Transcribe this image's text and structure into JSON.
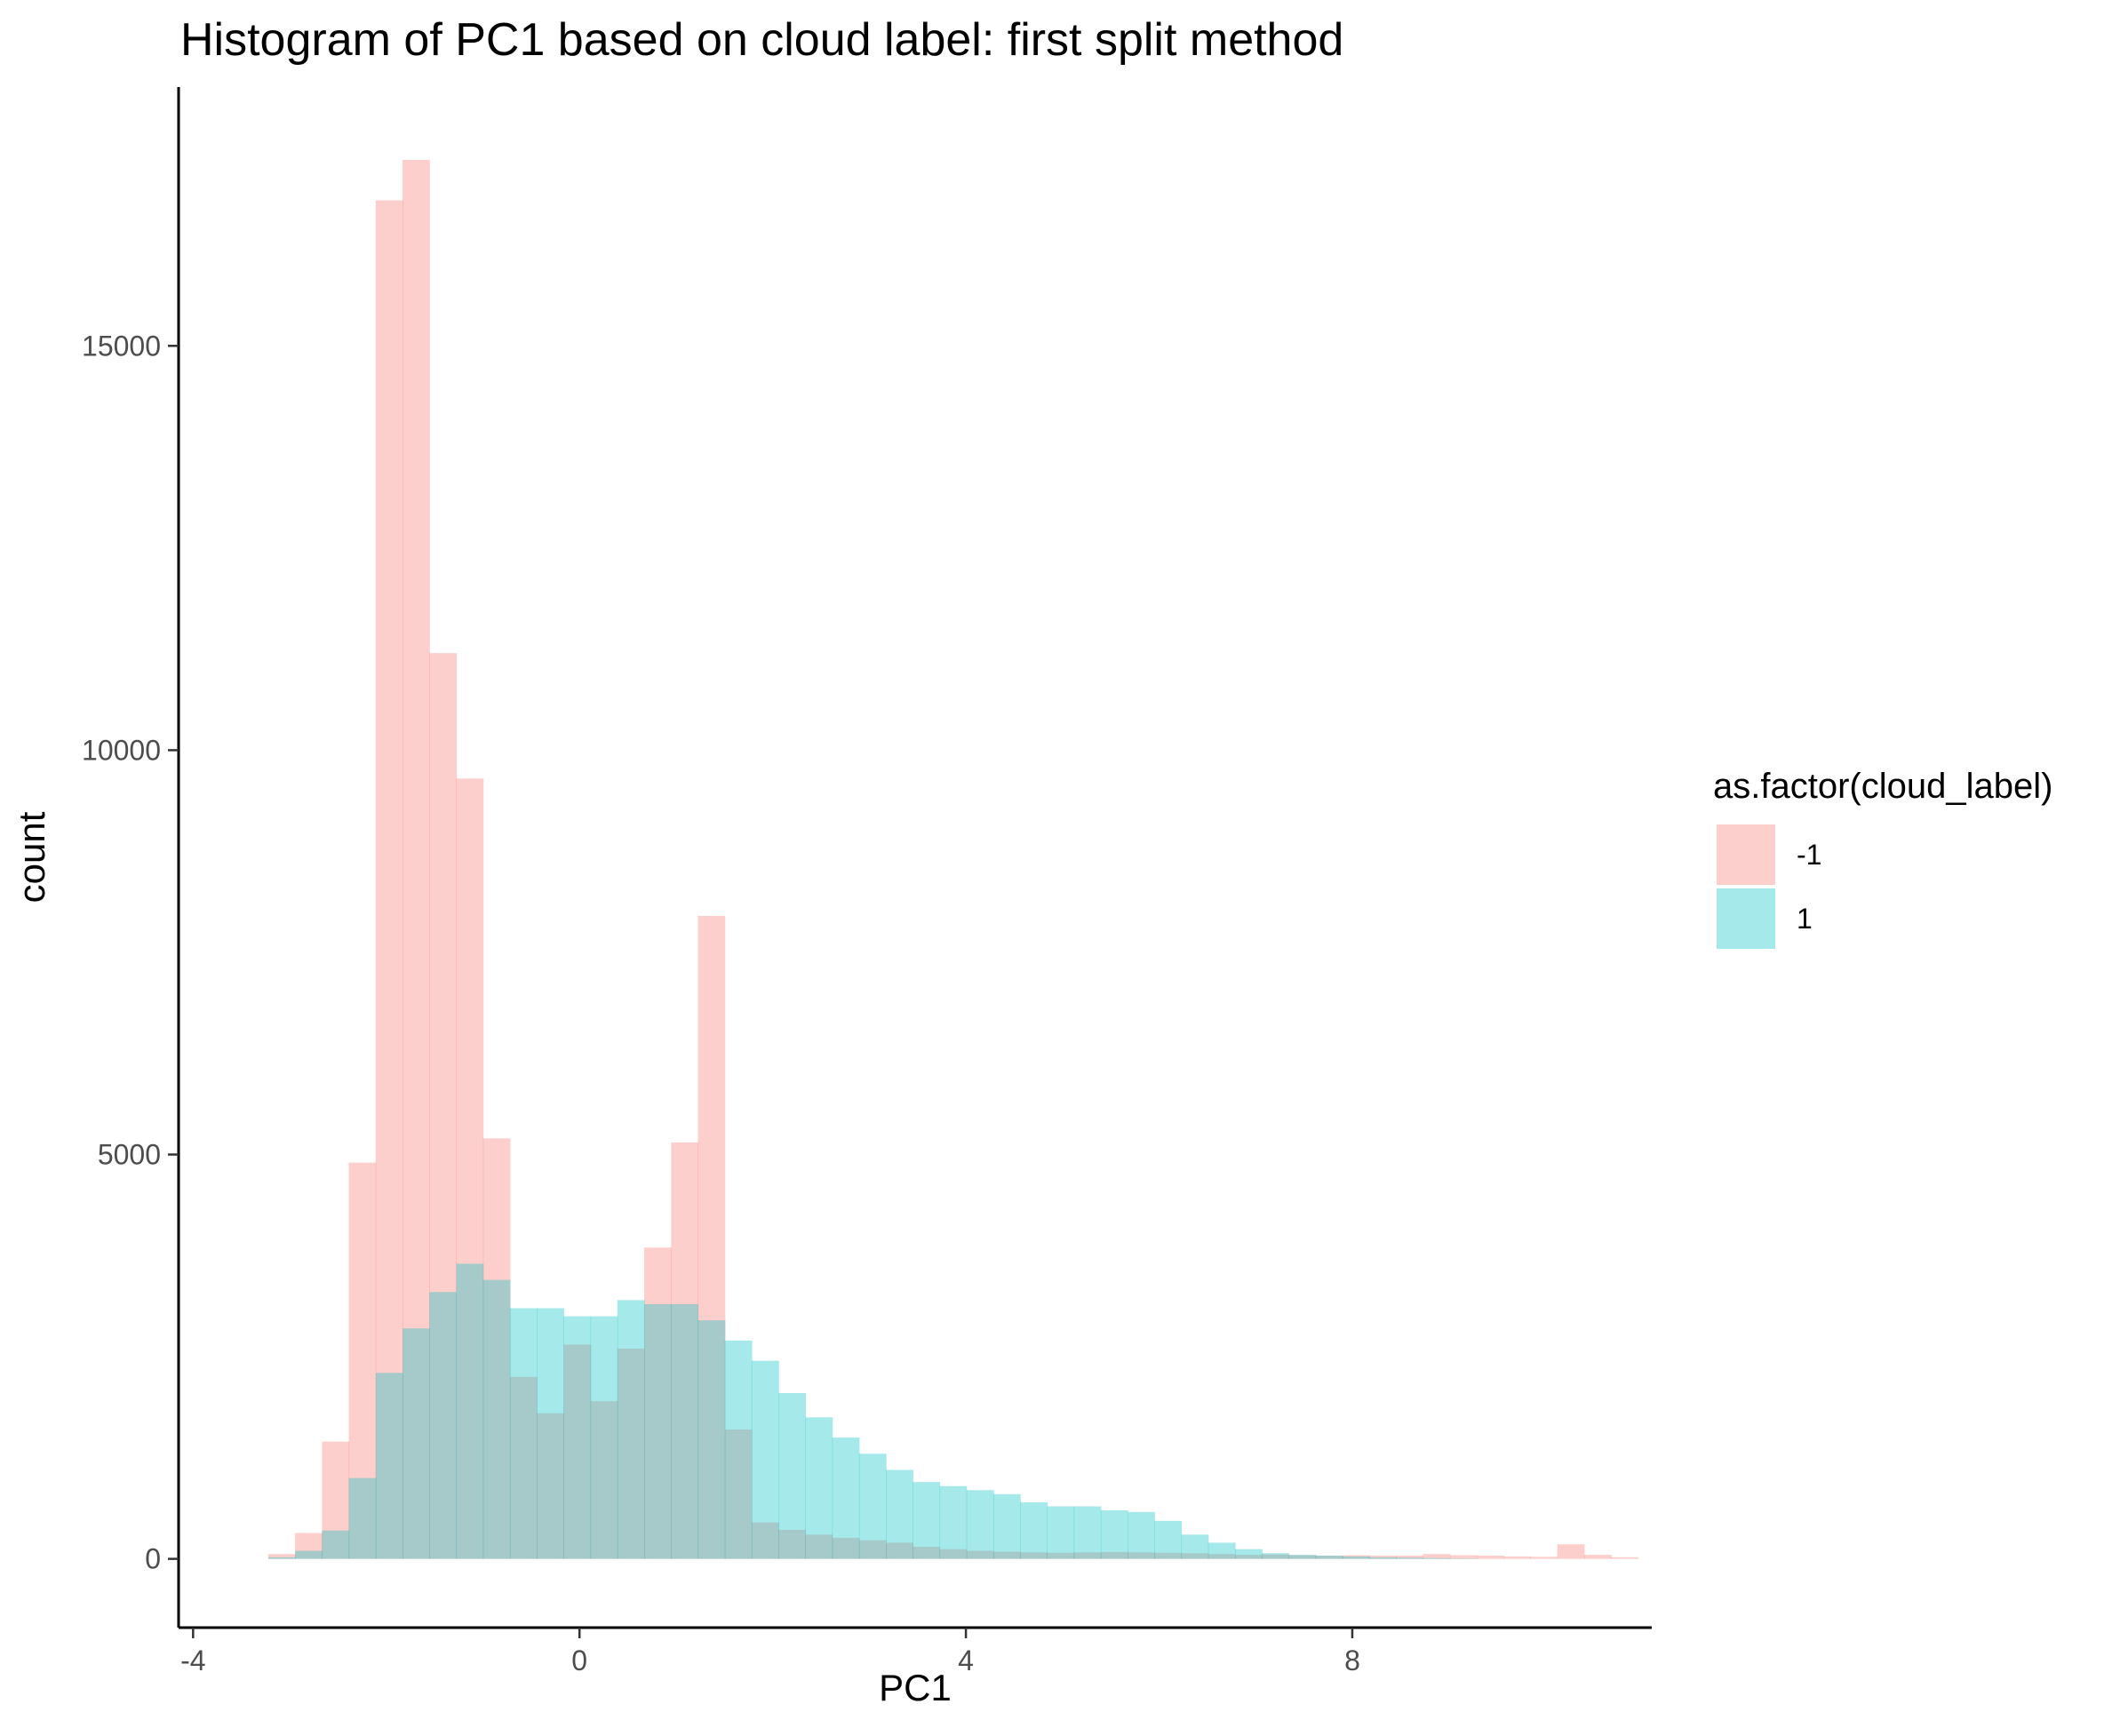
{
  "chart_data": {
    "type": "histogram",
    "title": "Histogram of PC1 based on cloud label: first split method",
    "xlabel": "PC1",
    "ylabel": "count",
    "xlim": [
      -4.15,
      11.1
    ],
    "ylim": [
      -850,
      18200
    ],
    "x_ticks": [
      -4,
      0,
      4,
      8
    ],
    "x_tick_labels": [
      "-4",
      "0",
      "4",
      "8"
    ],
    "y_ticks": [
      0,
      5000,
      10000,
      15000
    ],
    "y_tick_labels": [
      "0",
      "5000",
      "10000",
      "15000"
    ],
    "grid": false,
    "legend": {
      "title": "as.factor(cloud_label)",
      "position": "right",
      "entries": [
        {
          "label": "-1",
          "color": "#F8766D"
        },
        {
          "label": "1",
          "color": "#00BFC4"
        }
      ]
    },
    "bin_start": -3.5,
    "bin_width": 0.278,
    "fill_opacity": 0.35,
    "series": [
      {
        "name": "-1",
        "color": "#F8766D",
        "counts": [
          0,
          60,
          320,
          1450,
          4900,
          16800,
          17300,
          11200,
          9650,
          5200,
          2250,
          1800,
          2650,
          1950,
          2600,
          3850,
          5150,
          7950,
          1600,
          450,
          360,
          300,
          260,
          230,
          200,
          150,
          120,
          100,
          90,
          80,
          75,
          80,
          85,
          80,
          75,
          70,
          60,
          50,
          55,
          45,
          40,
          45,
          40,
          40,
          60,
          45,
          40,
          30,
          25,
          180,
          50,
          20
        ]
      },
      {
        "name": "1",
        "color": "#00BFC4",
        "counts": [
          0,
          20,
          100,
          350,
          1000,
          2300,
          2850,
          3300,
          3650,
          3450,
          3100,
          3100,
          3000,
          3000,
          3200,
          3150,
          3150,
          2950,
          2700,
          2450,
          2050,
          1750,
          1500,
          1300,
          1100,
          950,
          900,
          850,
          800,
          700,
          650,
          650,
          600,
          580,
          470,
          300,
          200,
          120,
          70,
          50,
          40,
          30,
          20,
          15,
          10,
          5,
          0,
          0,
          0,
          0,
          0,
          0
        ]
      }
    ]
  }
}
